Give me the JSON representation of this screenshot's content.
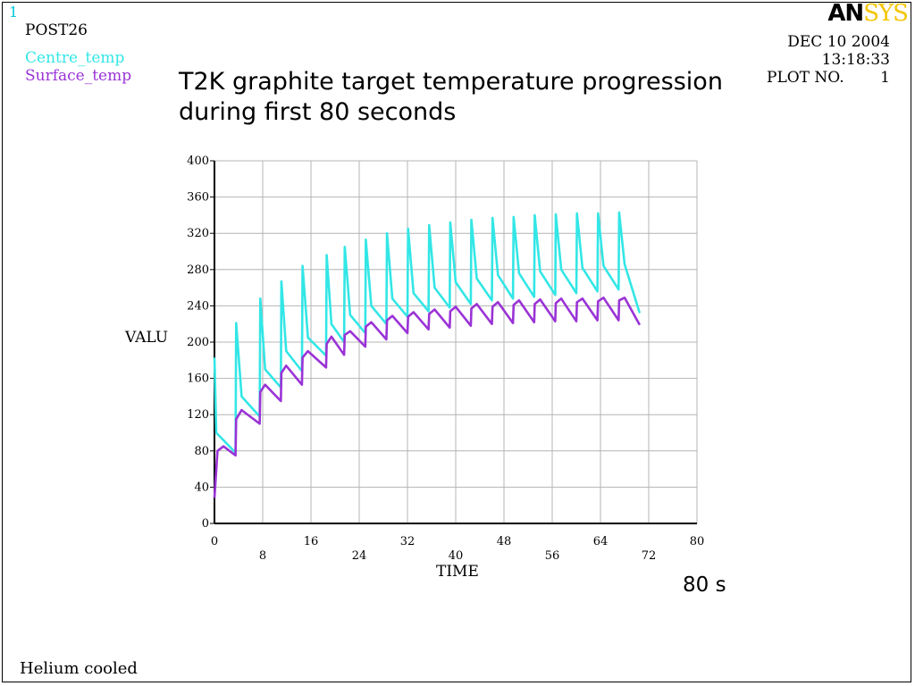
{
  "window_number": "1",
  "post_label": "POST26",
  "header": {
    "date": "DEC 10 2004",
    "time": "13:18:33",
    "plot_no_label": "PLOT NO.",
    "plot_no_value": "1",
    "logo_an": "AN",
    "logo_sys": "SYS"
  },
  "footer_note": "Helium cooled",
  "annotation": "80 s",
  "colors": {
    "centre": "#33e6e6",
    "surface": "#9a33d6",
    "grid": "#b4b4b4"
  },
  "chart_data": {
    "type": "line",
    "title": "T2K graphite target temperature progression",
    "subtitle": "during first 80 seconds",
    "xlabel": "TIME",
    "ylabel": "VALU",
    "xlim": [
      0,
      80
    ],
    "ylim": [
      0,
      400
    ],
    "x_ticks_upper": [
      "0",
      "16",
      "32",
      "48",
      "64",
      "80"
    ],
    "x_ticks_lower": [
      "8",
      "24",
      "40",
      "56",
      "72"
    ],
    "y_ticks": [
      "0",
      "40",
      "80",
      "120",
      "160",
      "200",
      "240",
      "280",
      "320",
      "360",
      "400"
    ],
    "grid": true,
    "legend_placement": "top-left",
    "series": [
      {
        "name": "Centre_temp",
        "color": "#33e6e6",
        "x": [
          0,
          0.3,
          3.5,
          3.6,
          4.5,
          7.5,
          7.6,
          8.4,
          11.0,
          11.1,
          11.9,
          14.5,
          14.6,
          15.5,
          18.5,
          18.6,
          19.4,
          21.5,
          21.6,
          22.5,
          25.0,
          25.1,
          26.0,
          28.5,
          28.6,
          29.5,
          32.0,
          32.1,
          33.0,
          35.5,
          35.6,
          36.5,
          39.0,
          39.1,
          40.0,
          42.5,
          42.6,
          43.5,
          46.0,
          46.1,
          47.0,
          49.5,
          49.6,
          50.5,
          53.0,
          53.1,
          54.0,
          56.5,
          56.6,
          57.5,
          60.0,
          60.1,
          61.0,
          63.5,
          63.6,
          64.5,
          67.0,
          67.1,
          68.0,
          70.5
        ],
        "y": [
          183,
          100,
          78,
          221,
          140,
          118,
          248,
          170,
          150,
          267,
          190,
          168,
          284,
          205,
          185,
          296,
          220,
          200,
          305,
          230,
          210,
          313,
          240,
          220,
          320,
          248,
          228,
          325,
          254,
          234,
          329,
          260,
          238,
          332,
          266,
          242,
          335,
          270,
          246,
          337,
          274,
          248,
          338,
          276,
          250,
          340,
          278,
          252,
          341,
          280,
          254,
          342,
          282,
          256,
          342,
          284,
          258,
          343,
          286,
          232
        ]
      },
      {
        "name": "Surface_temp",
        "color": "#9a33d6",
        "x": [
          0,
          0.5,
          1.5,
          3.5,
          3.6,
          4.5,
          7.5,
          7.6,
          8.4,
          11.0,
          11.1,
          11.9,
          14.5,
          14.6,
          15.5,
          18.5,
          18.6,
          19.4,
          21.5,
          21.6,
          22.5,
          25.0,
          25.1,
          26.0,
          28.5,
          28.6,
          29.5,
          32.0,
          32.1,
          33.0,
          35.5,
          35.6,
          36.5,
          39.0,
          39.1,
          40.0,
          42.5,
          42.6,
          43.5,
          46.0,
          46.1,
          47.0,
          49.5,
          49.6,
          50.5,
          53.0,
          53.1,
          54.0,
          56.5,
          56.6,
          57.5,
          60.0,
          60.1,
          61.0,
          63.5,
          63.6,
          64.5,
          67.0,
          67.1,
          68.0,
          70.5
        ],
        "y": [
          28,
          80,
          85,
          75,
          115,
          125,
          110,
          145,
          153,
          135,
          166,
          174,
          153,
          183,
          190,
          172,
          198,
          206,
          186,
          208,
          212,
          195,
          217,
          222,
          203,
          224,
          229,
          210,
          228,
          233,
          214,
          231,
          236,
          216,
          234,
          239,
          218,
          237,
          242,
          220,
          239,
          244,
          221,
          241,
          246,
          222,
          242,
          247,
          223,
          243,
          248,
          223,
          244,
          248,
          224,
          245,
          249,
          224,
          246,
          249,
          219
        ]
      }
    ]
  }
}
